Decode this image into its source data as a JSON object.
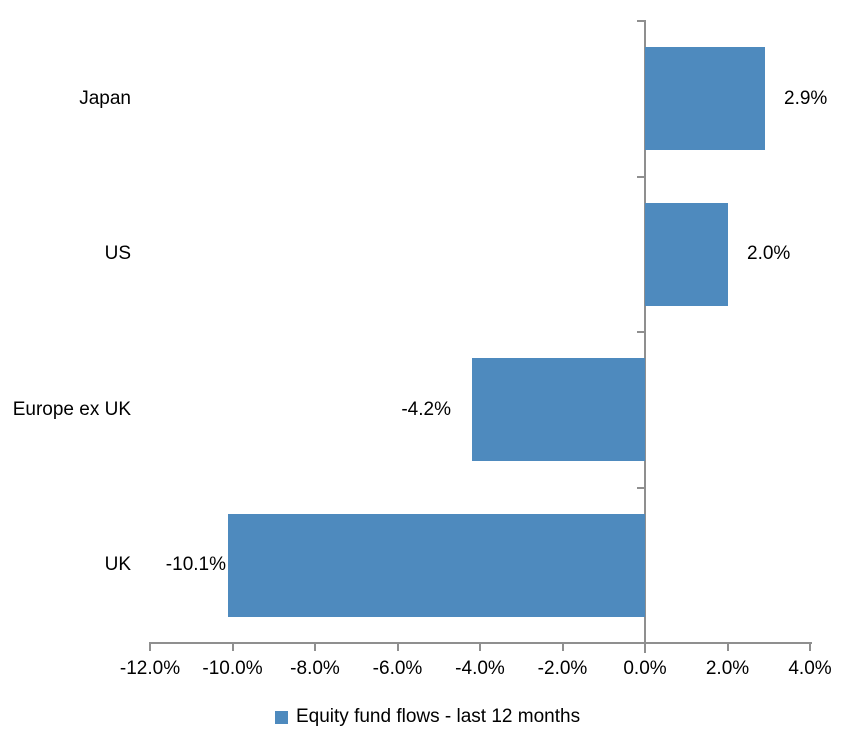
{
  "chart_data": {
    "type": "bar",
    "orientation": "horizontal",
    "title": "",
    "categories": [
      "Japan",
      "US",
      "Europe ex UK",
      "UK"
    ],
    "series": [
      {
        "name": "Equity fund flows - last 12 months",
        "values": [
          2.9,
          2.0,
          -4.2,
          -10.1
        ],
        "data_labels": [
          "2.9%",
          "2.0%",
          "-4.2%",
          "-10.1%"
        ],
        "label_gaps": [
          19,
          19,
          21,
          2
        ],
        "color": "#4E8ABE"
      }
    ],
    "xlim": [
      -12,
      4
    ],
    "x_ticks": [
      {
        "value": -12,
        "label": "-12.0%"
      },
      {
        "value": -10,
        "label": "-10.0%"
      },
      {
        "value": -8,
        "label": "-8.0%"
      },
      {
        "value": -6,
        "label": "-6.0%"
      },
      {
        "value": -4,
        "label": "-4.0%"
      },
      {
        "value": -2,
        "label": "-2.0%"
      },
      {
        "value": 0,
        "label": "0.0%"
      },
      {
        "value": 2,
        "label": "2.0%"
      },
      {
        "value": 4,
        "label": "4.0%"
      }
    ],
    "grid": false,
    "legend_position": "bottom",
    "axis_color": "#8F8F8F",
    "text_color": "#000000",
    "background_color": "#FFFFFF"
  },
  "legend": {
    "marker_icon": "square-icon",
    "label": "Equity fund flows - last 12 months"
  }
}
